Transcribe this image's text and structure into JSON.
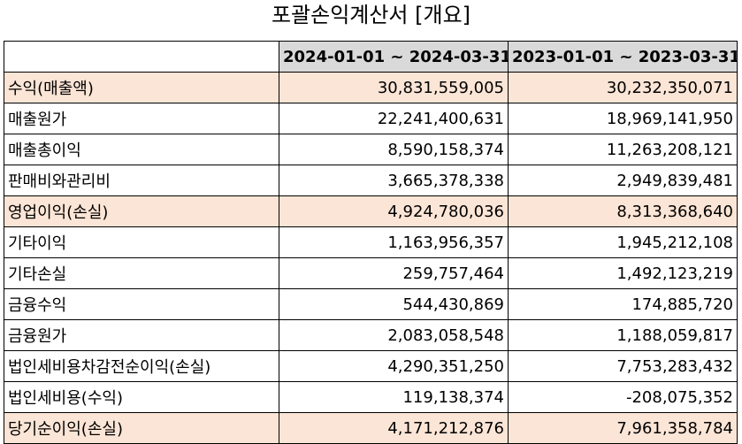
{
  "title": "포괄손익계산서 [개요]",
  "headers": [
    "",
    "2024-01-01 ~ 2024-03-31",
    "2023-01-01 ~ 2023-03-31"
  ],
  "rows": [
    {
      "label": "수익(매출액)",
      "v1": "30,831,559,005",
      "v2": "30,232,350,071",
      "highlight": true
    },
    {
      "label": "매출원가",
      "v1": "22,241,400,631",
      "v2": "18,969,141,950",
      "highlight": false
    },
    {
      "label": "매출총이익",
      "v1": "8,590,158,374",
      "v2": "11,263,208,121",
      "highlight": false
    },
    {
      "label": "판매비와관리비",
      "v1": "3,665,378,338",
      "v2": "2,949,839,481",
      "highlight": false
    },
    {
      "label": "영업이익(손실)",
      "v1": "4,924,780,036",
      "v2": "8,313,368,640",
      "highlight": true
    },
    {
      "label": "기타이익",
      "v1": "1,163,956,357",
      "v2": "1,945,212,108",
      "highlight": false
    },
    {
      "label": "기타손실",
      "v1": "259,757,464",
      "v2": "1,492,123,219",
      "highlight": false
    },
    {
      "label": "금융수익",
      "v1": "544,430,869",
      "v2": "174,885,720",
      "highlight": false
    },
    {
      "label": "금융원가",
      "v1": "2,083,058,548",
      "v2": "1,188,059,817",
      "highlight": false
    },
    {
      "label": "법인세비용차감전순이익(손실)",
      "v1": "4,290,351,250",
      "v2": "7,753,283,432",
      "highlight": false
    },
    {
      "label": "법인세비용(수익)",
      "v1": "119,138,374",
      "v2": "-208,075,352",
      "highlight": false
    },
    {
      "label": "당기순이익(손실)",
      "v1": "4,171,212,876",
      "v2": "7,961,358,784",
      "highlight": true
    }
  ],
  "colors": {
    "header_bg": "#d9d9d9",
    "highlight_bg": "#fbe5d6"
  }
}
